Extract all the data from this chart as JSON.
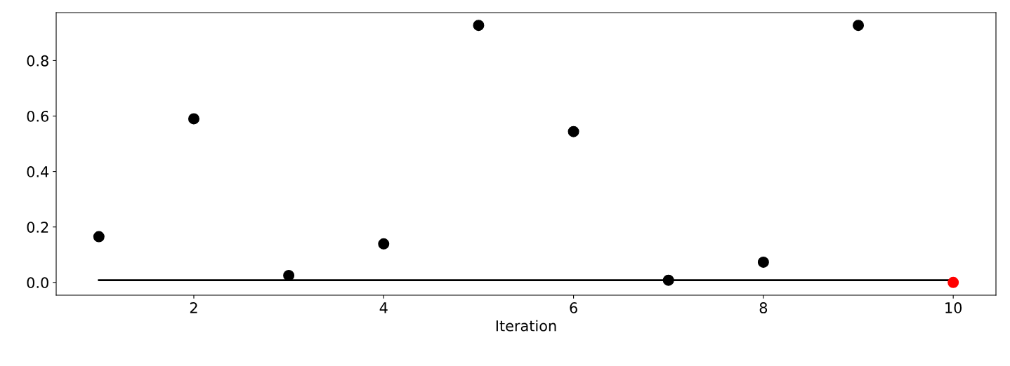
{
  "chart_data": {
    "type": "scatter",
    "xlabel": "Iteration",
    "marker": "circle",
    "grid": false,
    "legend": false,
    "series": [
      {
        "type": "line",
        "marker": "none",
        "color": "#000000",
        "x": [
          1,
          10
        ],
        "values": [
          0.008,
          0.008
        ]
      },
      {
        "color": "#000000",
        "x": [
          1,
          2,
          3,
          4,
          5,
          6,
          7,
          8,
          9
        ],
        "values": [
          0.165,
          0.59,
          0.025,
          0.139,
          0.927,
          0.544,
          0.008,
          0.073,
          0.927
        ]
      },
      {
        "color": "#ff0000",
        "x": [
          10
        ],
        "values": [
          0.0
        ]
      }
    ],
    "xlim": [
      0.55,
      10.45
    ],
    "xticks": [
      2,
      4,
      6,
      8,
      10
    ],
    "ylim": [
      -0.046,
      0.973
    ],
    "yticks": [
      {
        "value": 0.0,
        "label": "0.0"
      },
      0.2,
      0.4,
      0.6,
      0.8
    ]
  }
}
